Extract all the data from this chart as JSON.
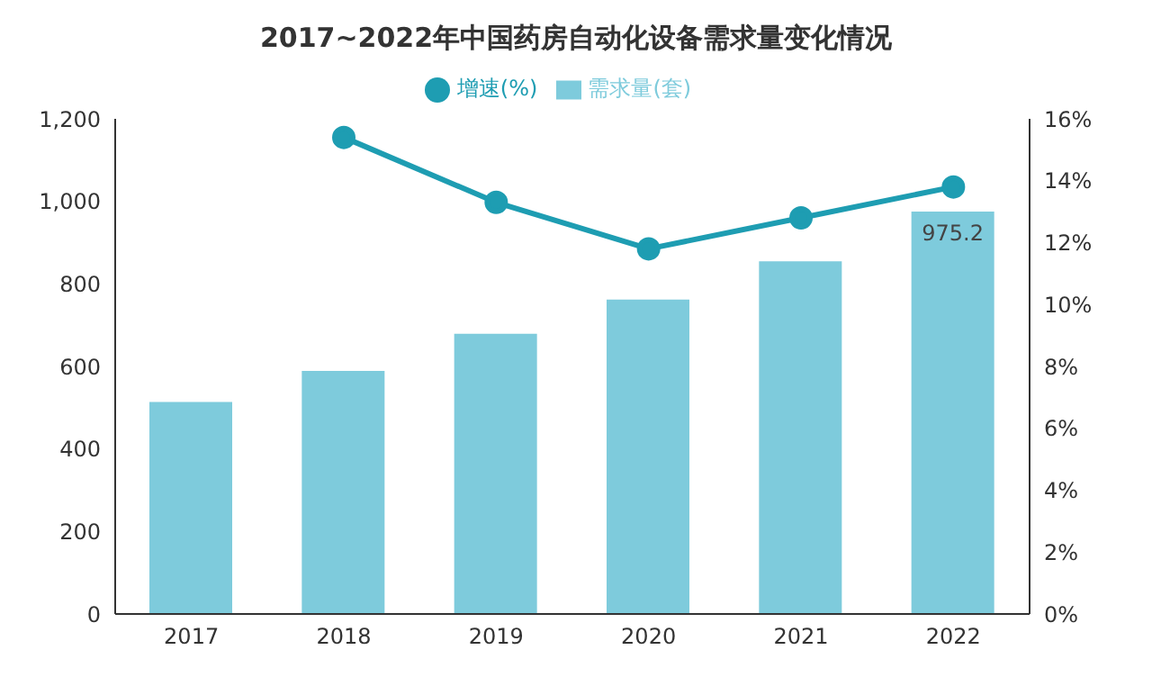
{
  "chart_data": {
    "type": "bar",
    "title": "2017~2022年中国药房自动化设备需求量变化情况",
    "categories": [
      "2017",
      "2018",
      "2019",
      "2020",
      "2021",
      "2022"
    ],
    "series": [
      {
        "name": "需求量(套)",
        "color": "#7ecbdc",
        "values": [
          514,
          589,
          679,
          762,
          855,
          975.2
        ],
        "value_labels": [
          null,
          null,
          null,
          null,
          null,
          "975.2"
        ]
      },
      {
        "name": "增速(%)",
        "type": "line",
        "axis": "y2",
        "color": "#1e9db2",
        "values": [
          null,
          15.4,
          13.3,
          11.8,
          12.8,
          13.8
        ]
      }
    ],
    "ylim": [
      0,
      1200
    ],
    "yticks": [
      {
        "value": 0,
        "label": "0"
      },
      {
        "value": 200,
        "label": "200"
      },
      {
        "value": 400,
        "label": "400"
      },
      {
        "value": 600,
        "label": "600"
      },
      {
        "value": 800,
        "label": "800"
      },
      {
        "value": 1000,
        "label": "1,000"
      },
      {
        "value": 1200,
        "label": "1,200"
      }
    ],
    "y2lim": [
      0,
      16
    ],
    "y2ticks": [
      {
        "value": 0,
        "label": "0%"
      },
      {
        "value": 2,
        "label": "2%"
      },
      {
        "value": 4,
        "label": "4%"
      },
      {
        "value": 6,
        "label": "6%"
      },
      {
        "value": 8,
        "label": "8%"
      },
      {
        "value": 10,
        "label": "10%"
      },
      {
        "value": 12,
        "label": "12%"
      },
      {
        "value": 14,
        "label": "14%"
      },
      {
        "value": 16,
        "label": "16%"
      }
    ],
    "grid": false,
    "legend": "top",
    "marker": "circle",
    "line_style": "solid"
  }
}
